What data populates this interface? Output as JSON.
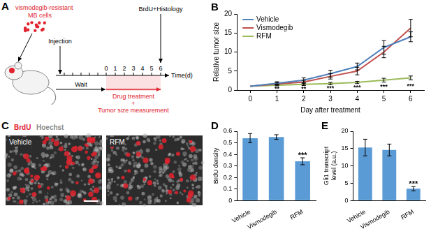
{
  "panels": {
    "A": {
      "panel": "A",
      "cells_label": [
        "vismodegib-resistant",
        "MB cells"
      ],
      "injection": "Injection",
      "endpoint": "BrdU+Histology",
      "wait": "Wait",
      "treatment": [
        "Drug treatment",
        "+",
        "Tumor size measurement"
      ],
      "axis_label": "Time(d)",
      "days": [
        0,
        1,
        2,
        3,
        4,
        5,
        6
      ]
    },
    "C": {
      "panel": "C",
      "stain_labels": [
        {
          "text": "BrdU",
          "color": "#e0232e"
        },
        {
          "text": "Hoechst",
          "color": "#8a8a8a"
        }
      ],
      "images": [
        "Vehicle",
        "RFM"
      ]
    }
  },
  "chart_data": [
    {
      "panel": "B",
      "type": "line",
      "x_label": "Day after treatment",
      "y_label": "Relative tumor size",
      "categories": [
        "0",
        "1",
        "2",
        "3",
        "4",
        "5",
        "6"
      ],
      "ylim": [
        0,
        20
      ],
      "yticks": [
        0,
        5,
        10,
        15,
        20
      ],
      "grid": false,
      "legend": "upper left",
      "series": [
        {
          "name": "Vehicle",
          "color": "#4f81bd",
          "values": [
            1,
            1.8,
            2.6,
            4.3,
            6.2,
            11.2,
            14.0
          ],
          "errors": [
            0,
            0.4,
            0.6,
            0.9,
            0.9,
            1.8,
            1.3
          ]
        },
        {
          "name": "Vismodegib",
          "color": "#c0504d",
          "values": [
            1,
            1.6,
            2.1,
            3.6,
            5.0,
            10.0,
            16.3
          ],
          "errors": [
            0,
            0.3,
            0.5,
            0.7,
            1.0,
            1.5,
            2.3
          ]
        },
        {
          "name": "RFM",
          "color": "#9bbb59",
          "values": [
            1,
            1.3,
            1.5,
            1.7,
            2.0,
            2.6,
            3.2
          ],
          "errors": [
            0,
            0.2,
            0.3,
            0.3,
            0.3,
            0.5,
            0.5
          ]
        }
      ],
      "annotations": [
        {
          "category": "1",
          "text": "**"
        },
        {
          "category": "2",
          "text": "**"
        },
        {
          "category": "3",
          "text": "***"
        },
        {
          "category": "4",
          "text": "***"
        },
        {
          "category": "5",
          "text": "***"
        },
        {
          "category": "6",
          "text": "***"
        }
      ]
    },
    {
      "panel": "D",
      "type": "bar",
      "y_label": "BrdU density",
      "categories": [
        "Vehicle",
        "Vismodegib",
        "RFM"
      ],
      "values": [
        0.54,
        0.55,
        0.34
      ],
      "errors": [
        0.04,
        0.02,
        0.03
      ],
      "color": "#5b9bd5",
      "ylim": [
        0,
        0.6
      ],
      "yticks": [
        0,
        0.1,
        0.2,
        0.3,
        0.4,
        0.5,
        0.6
      ],
      "grid": false,
      "annotations": [
        {
          "category": "RFM",
          "text": "***"
        }
      ]
    },
    {
      "panel": "E",
      "type": "bar",
      "y_label": "Gli1 transcript level (a.u.)",
      "categories": [
        "Vehicle",
        "Vismodegib",
        "RFM"
      ],
      "values": [
        15.3,
        14.6,
        3.4
      ],
      "errors": [
        2.4,
        1.7,
        0.6
      ],
      "color": "#5b9bd5",
      "ylim": [
        0,
        20
      ],
      "yticks": [
        0,
        5,
        10,
        15,
        20
      ],
      "grid": false,
      "annotations": [
        {
          "category": "RFM",
          "text": "***"
        }
      ]
    }
  ]
}
